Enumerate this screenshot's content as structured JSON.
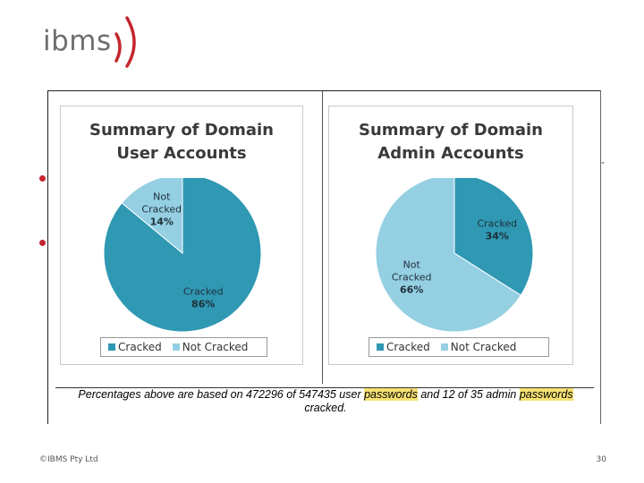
{
  "logo": {
    "text": "ibms"
  },
  "caption": {
    "part1": "Percentages above are based on 472296 of 547435 user ",
    "hl1": "passwords",
    "part2": " and 12 of 35 admin ",
    "hl2": "passwords",
    "part3": " cracked."
  },
  "footer": {
    "copyright": "©IBMS Pty Ltd",
    "page": "30"
  },
  "colors": {
    "cracked": "#2f98b3",
    "not_cracked": "#94cfe2",
    "accent": "#c4262e",
    "highlight": "#f7e173"
  },
  "chart_data": [
    {
      "type": "pie",
      "title_lines": [
        "Summary of Domain",
        "User Accounts"
      ],
      "categories": [
        "Cracked",
        "Not Cracked"
      ],
      "values": [
        86,
        14
      ],
      "slice_labels": [
        [
          "Cracked",
          "86%"
        ],
        [
          "Not",
          "Cracked",
          "14%"
        ]
      ],
      "legend": [
        "Cracked",
        "Not Cracked"
      ]
    },
    {
      "type": "pie",
      "title_lines": [
        "Summary of Domain",
        "Admin Accounts"
      ],
      "categories": [
        "Cracked",
        "Not Cracked"
      ],
      "values": [
        34,
        66
      ],
      "slice_labels": [
        [
          "Cracked",
          "34%"
        ],
        [
          "Not",
          "Cracked",
          "66%"
        ]
      ],
      "legend": [
        "Cracked",
        "Not Cracked"
      ]
    }
  ]
}
